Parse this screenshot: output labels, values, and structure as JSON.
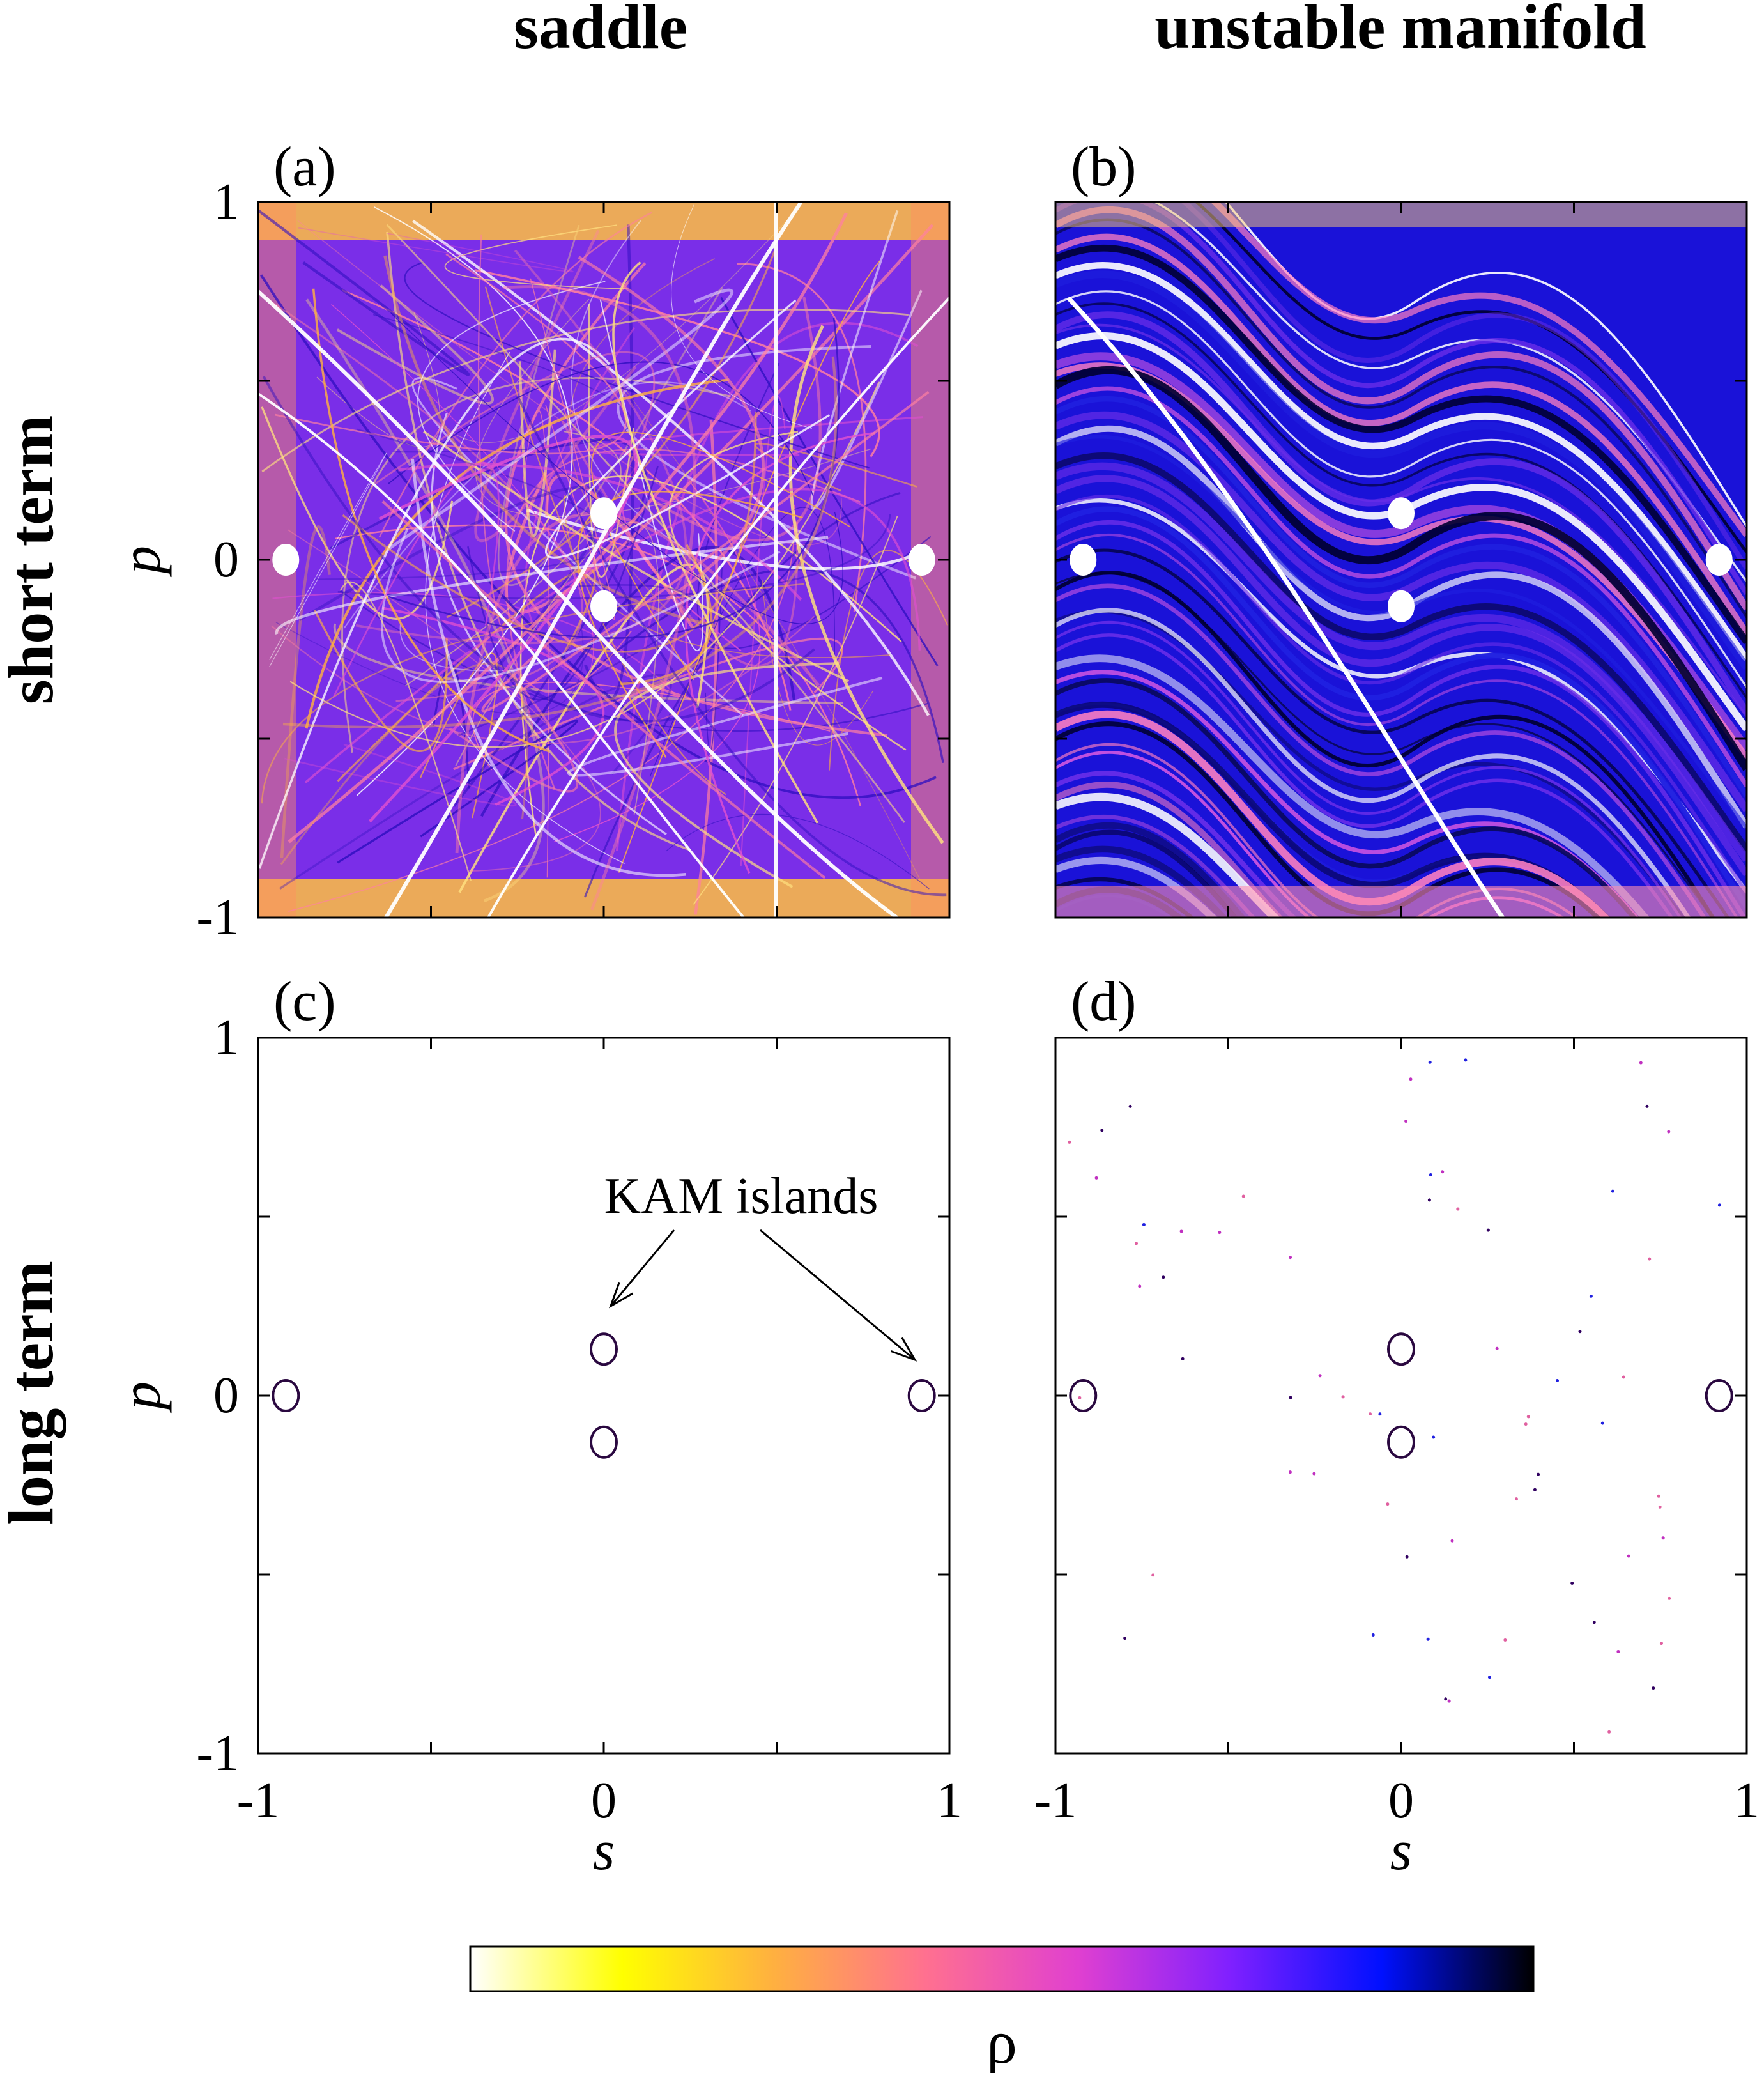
{
  "column_titles": [
    "saddle",
    "unstable manifold"
  ],
  "row_titles": [
    "short term",
    "long term"
  ],
  "panels": [
    {
      "label": "(a)",
      "kind": "saddle",
      "term": "short"
    },
    {
      "label": "(b)",
      "kind": "manifold",
      "term": "short"
    },
    {
      "label": "(c)",
      "kind": "saddle",
      "term": "long"
    },
    {
      "label": "(d)",
      "kind": "manifold",
      "term": "long"
    }
  ],
  "annotation": {
    "text": "KAM islands"
  },
  "colorbar": {
    "label": "ρ",
    "colors": [
      "#ffffff",
      "#ffff00",
      "#ffb040",
      "#ff7090",
      "#e040d0",
      "#8020ff",
      "#0010ff",
      "#000000"
    ]
  },
  "chart_data": {
    "type": "heatmap",
    "xlabel": "s",
    "ylabel": "p",
    "xlim": [
      -1,
      1
    ],
    "ylim": [
      -1,
      1
    ],
    "x_ticks": [
      {
        "value": -1,
        "label": "-1"
      },
      {
        "value": 0,
        "label": "0"
      },
      {
        "value": 1,
        "label": "1"
      }
    ],
    "y_ticks": [
      {
        "value": 1,
        "label": "1"
      },
      {
        "value": 0,
        "label": "0"
      },
      {
        "value": -1,
        "label": "-1"
      }
    ],
    "minor_tick_values": [
      -0.5,
      0.5
    ],
    "kam_islands": [
      {
        "s": -0.92,
        "p": 0.0
      },
      {
        "s": 0.0,
        "p": 0.13
      },
      {
        "s": 0.0,
        "p": -0.13
      },
      {
        "s": 0.92,
        "p": 0.0
      }
    ],
    "annotation_targets": [
      {
        "s": 0.02,
        "p": 0.25
      },
      {
        "s": 0.9,
        "p": 0.1
      }
    ]
  }
}
